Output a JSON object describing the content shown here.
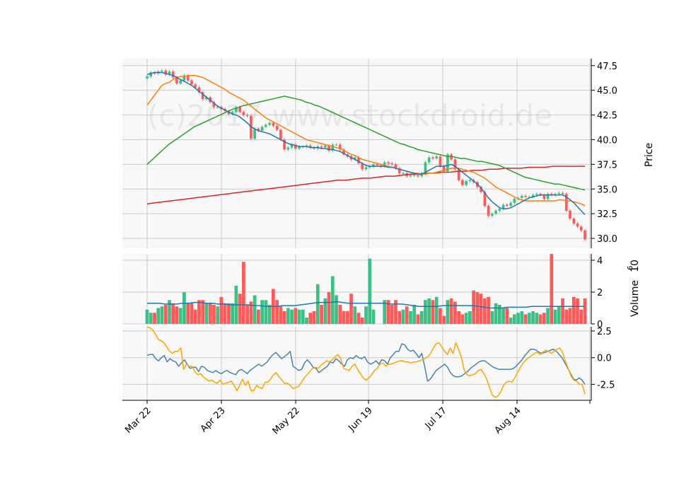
{
  "watermark": "(c)2017 www.stockdroid.de",
  "colors": {
    "up": "#3dbf85",
    "down": "#ff5a5a",
    "ma_short": "#1f77b4",
    "ma_mid": "#ff7f0e",
    "ma_long": "#2ca02c",
    "ma_200": "#d62728",
    "volume_ma": "#1f77b4",
    "osc_a": "#4682b4",
    "osc_b": "#ffa500",
    "panel_bg": "#f8f8f8",
    "grid": "#cccccc"
  },
  "x_tick_labels": [
    "Mar 22",
    "Apr 23",
    "May 22",
    "Jun 19",
    "Jul 17",
    "Aug 14"
  ],
  "chart_data": [
    {
      "type": "candlestick",
      "ylabel": "Price",
      "ylim": [
        29.0,
        48.2
      ],
      "yticks": [
        "30.0",
        "32.5",
        "35.0",
        "37.5",
        "40.0",
        "42.5",
        "45.0",
        "47.5"
      ],
      "grid": true,
      "start_date": "Mar 22",
      "close": [
        46.4,
        46.8,
        46.7,
        46.9,
        47.0,
        46.6,
        46.9,
        46.3,
        45.7,
        46.0,
        46.5,
        46.0,
        45.6,
        45.3,
        44.8,
        44.1,
        44.3,
        43.8,
        43.3,
        43.3,
        43.1,
        42.9,
        42.6,
        42.8,
        43.3,
        42.8,
        42.5,
        42.4,
        40.1,
        41.1,
        40.9,
        41.3,
        41.5,
        41.7,
        41.4,
        41.0,
        40.0,
        39.0,
        39.2,
        39.5,
        39.1,
        39.3,
        39.3,
        39.4,
        39.2,
        39.1,
        39.3,
        39.2,
        39.4,
        38.9,
        39.5,
        39.5,
        39.0,
        38.5,
        38.3,
        38.0,
        38.2,
        37.6,
        37.0,
        37.2,
        37.3,
        37.5,
        37.4,
        37.3,
        37.7,
        37.6,
        37.5,
        37.1,
        36.6,
        36.6,
        36.3,
        36.4,
        36.4,
        36.3,
        36.6,
        37.7,
        38.2,
        38.1,
        38.3,
        37.3,
        36.8,
        38.5,
        38.0,
        37.0,
        35.9,
        35.4,
        35.8,
        35.9,
        35.7,
        35.2,
        34.7,
        33.3,
        32.3,
        32.5,
        32.8,
        33.0,
        33.4,
        33.3,
        33.6,
        34.0,
        34.1,
        34.3,
        34.2,
        34.2,
        34.4,
        34.5,
        34.4,
        34.0,
        34.5,
        34.4,
        34.5,
        34.6,
        34.5,
        32.8,
        32.0,
        31.5,
        31.2,
        30.8,
        29.9
      ],
      "ma_short": [
        46.6,
        46.7,
        46.8,
        46.8,
        46.8,
        46.7,
        46.6,
        46.5,
        46.3,
        46.1,
        45.9,
        45.7,
        45.5,
        45.2,
        44.9,
        44.6,
        44.3,
        44.0,
        43.7,
        43.4,
        43.2,
        43.0,
        42.8,
        42.6,
        42.5,
        42.3,
        42.0,
        41.7,
        41.3,
        41.1,
        40.9,
        40.8,
        40.7,
        40.6,
        40.4,
        40.2,
        40.0,
        39.8,
        39.6,
        39.5,
        39.4,
        39.3,
        39.3,
        39.3,
        39.2,
        39.2,
        39.2,
        39.1,
        39.1,
        39.0,
        39.0,
        38.9,
        38.8,
        38.6,
        38.4,
        38.2,
        38.0,
        37.8,
        37.6,
        37.4,
        37.3,
        37.3,
        37.3,
        37.3,
        37.3,
        37.2,
        37.2,
        37.1,
        37.0,
        36.9,
        36.8,
        36.7,
        36.6,
        36.5,
        36.5,
        36.7,
        36.9,
        37.1,
        37.3,
        37.3,
        37.3,
        37.4,
        37.5,
        37.3,
        37.0,
        36.7,
        36.4,
        36.1,
        35.8,
        35.5,
        35.1,
        34.6,
        34.1,
        33.7,
        33.4,
        33.1,
        33.0,
        33.0,
        33.1,
        33.3,
        33.5,
        33.7,
        33.9,
        34.1,
        34.2,
        34.3,
        34.4,
        34.4,
        34.4,
        34.4,
        34.4,
        34.4,
        34.4,
        34.2,
        33.9,
        33.6,
        33.2,
        32.8,
        32.4
      ],
      "ma_mid": [
        43.5,
        44.0,
        44.5,
        45.0,
        45.5,
        45.7,
        45.8,
        46.1,
        46.3,
        46.4,
        46.4,
        46.5,
        46.5,
        46.5,
        46.4,
        46.3,
        46.1,
        45.9,
        45.7,
        45.5,
        45.3,
        45.1,
        44.8,
        44.6,
        44.4,
        44.2,
        44.0,
        43.7,
        43.4,
        43.1,
        42.8,
        42.5,
        42.2,
        42.0,
        41.8,
        41.6,
        41.4,
        41.2,
        41.0,
        40.8,
        40.6,
        40.4,
        40.2,
        40.0,
        39.9,
        39.8,
        39.7,
        39.6,
        39.5,
        39.4,
        39.3,
        39.2,
        39.1,
        38.9,
        38.7,
        38.5,
        38.4,
        38.2,
        38.0,
        37.9,
        37.8,
        37.7,
        37.6,
        37.5,
        37.4,
        37.3,
        37.2,
        37.1,
        37.0,
        36.9,
        36.8,
        36.7,
        36.6,
        36.6,
        36.5,
        36.5,
        36.6,
        36.6,
        36.7,
        36.8,
        36.9,
        37.0,
        37.1,
        37.1,
        37.1,
        37.0,
        36.9,
        36.8,
        36.7,
        36.5,
        36.3,
        36.1,
        35.8,
        35.5,
        35.2,
        35.0,
        34.8,
        34.6,
        34.4,
        34.2,
        34.0,
        33.9,
        33.8,
        33.8,
        33.8,
        33.8,
        33.8,
        33.8,
        33.8,
        33.8,
        33.8,
        33.9,
        33.9,
        33.8,
        33.8,
        33.7,
        33.6,
        33.5,
        33.3
      ],
      "ma_long": [
        37.5,
        37.9,
        38.3,
        38.7,
        39.1,
        39.5,
        39.8,
        40.1,
        40.4,
        40.7,
        41.0,
        41.3,
        41.5,
        41.7,
        41.9,
        42.1,
        42.3,
        42.5,
        42.7,
        42.9,
        43.1,
        43.2,
        43.4,
        43.5,
        43.6,
        43.7,
        43.8,
        43.9,
        44.0,
        44.1,
        44.2,
        44.3,
        44.4,
        44.3,
        44.2,
        44.1,
        44.0,
        43.8,
        43.7,
        43.5,
        43.4,
        43.2,
        43.0,
        42.8,
        42.6,
        42.4,
        42.2,
        42.0,
        41.8,
        41.6,
        41.4,
        41.2,
        41.0,
        40.8,
        40.6,
        40.4,
        40.2,
        40.0,
        39.8,
        39.6,
        39.5,
        39.3,
        39.2,
        39.0,
        38.9,
        38.8,
        38.7,
        38.6,
        38.5,
        38.4,
        38.3,
        38.3,
        38.2,
        38.1,
        38.1,
        38.0,
        37.9,
        37.8,
        37.8,
        37.7,
        37.6,
        37.5,
        37.4,
        37.2,
        37.0,
        36.8,
        36.6,
        36.4,
        36.2,
        36.1,
        36.0,
        35.9,
        35.8,
        35.7,
        35.6,
        35.5,
        35.5,
        35.4,
        35.3,
        35.2,
        35.1,
        35.0,
        34.9
      ],
      "ma_200": [
        33.5,
        33.6,
        33.7,
        33.8,
        33.9,
        34.0,
        34.1,
        34.2,
        34.3,
        34.4,
        34.5,
        34.6,
        34.7,
        34.8,
        34.9,
        35.0,
        35.1,
        35.2,
        35.3,
        35.4,
        35.5,
        35.6,
        35.7,
        35.8,
        35.9,
        35.9,
        36.0,
        36.1,
        36.1,
        36.2,
        36.3,
        36.3,
        36.4,
        36.5,
        36.5,
        36.6,
        36.6,
        36.7,
        36.7,
        36.8,
        36.8,
        36.9,
        36.9,
        37.0,
        37.0,
        37.1,
        37.1,
        37.1,
        37.2,
        37.2,
        37.2,
        37.3,
        37.3,
        37.3,
        37.3,
        37.3
      ]
    },
    {
      "type": "bar",
      "ylabel": "Volume",
      "unit_label": "10^6",
      "ylim": [
        0,
        4.4
      ],
      "yticks": [
        "0",
        "2",
        "4"
      ],
      "grid": true,
      "values": [
        0.9,
        0.7,
        0.7,
        1.0,
        1.1,
        1.2,
        1.5,
        1.3,
        1.1,
        1.0,
        2.0,
        1.3,
        1.3,
        0.9,
        1.5,
        1.5,
        1.3,
        1.3,
        1.2,
        1.1,
        1.7,
        1.3,
        1.3,
        1.3,
        2.4,
        1.9,
        3.9,
        1.2,
        1.4,
        1.8,
        0.9,
        1.5,
        1.5,
        1.2,
        2.2,
        1.5,
        1.1,
        0.8,
        1.0,
        0.9,
        1.0,
        0.9,
        0.9,
        0.4,
        0.7,
        0.8,
        2.5,
        1.2,
        1.6,
        2.0,
        3.0,
        1.8,
        1.2,
        0.8,
        0.8,
        1.9,
        1.1,
        0.7,
        0.4,
        1.1,
        4.1,
        0.9,
        0.0,
        0.0,
        1.5,
        1.5,
        1.2,
        1.5,
        0.8,
        0.9,
        1.1,
        0.8,
        1.2,
        0.6,
        0.8,
        1.5,
        1.6,
        1.5,
        1.7,
        1.0,
        0.5,
        1.5,
        1.6,
        1.4,
        0.8,
        0.6,
        0.7,
        0.8,
        2.1,
        2.0,
        1.9,
        1.6,
        1.7,
        0.8,
        1.3,
        1.2,
        1.0,
        1.0,
        0.4,
        0.6,
        0.7,
        0.8,
        0.6,
        0.7,
        0.8,
        0.7,
        0.6,
        0.7,
        1.0,
        4.4,
        0.9,
        1.1,
        1.6,
        0.9,
        1.0,
        1.7,
        1.6,
        0.9,
        1.6
      ],
      "ma": [
        1.3,
        1.3,
        1.3,
        1.25,
        1.25,
        1.25,
        1.3,
        1.3,
        1.35,
        1.35,
        1.3,
        1.3,
        1.25,
        1.25,
        1.2,
        1.2,
        1.2,
        1.2,
        1.15,
        1.15,
        1.1,
        1.1,
        1.1,
        1.15,
        1.15,
        1.15,
        1.2,
        1.25,
        1.3,
        1.35,
        1.35,
        1.35,
        1.4,
        1.35,
        1.3,
        1.3,
        1.3,
        1.3,
        1.3,
        1.3,
        1.3,
        1.25,
        1.25,
        1.25,
        1.2,
        1.15,
        1.1,
        1.1,
        1.1,
        1.1,
        1.15,
        1.15,
        1.15,
        1.15,
        1.15,
        1.15,
        1.1,
        1.05,
        1.0,
        1.0,
        1.0,
        1.05,
        1.05,
        1.05,
        1.05,
        1.1,
        1.1,
        1.1,
        1.1,
        1.1,
        1.1,
        1.1,
        1.1,
        1.1,
        1.1
      ]
    },
    {
      "type": "line",
      "ylim": [
        -4.0,
        2.9
      ],
      "yticks": [
        "-2.5",
        "0.0",
        "2.5"
      ],
      "grid": true,
      "series": [
        {
          "values": [
            0.2,
            0.3,
            0.3,
            -0.1,
            -0.3,
            0.0,
            0.2,
            -0.4,
            -0.1,
            -0.3,
            -0.4,
            -0.8,
            -0.5,
            -0.2,
            -0.6,
            -1.0,
            -0.9,
            -0.9,
            -1.3,
            -0.8,
            -0.9,
            -1.2,
            -1.3,
            -1.4,
            -1.2,
            -1.4,
            -1.5,
            -1.3,
            -1.2,
            -1.4,
            -1.5,
            -1.6,
            -1.2,
            -1.1,
            -1.3,
            -1.5,
            -1.2,
            -1.0,
            -0.8,
            -0.6,
            -0.8,
            -0.6,
            -0.4,
            0.0,
            0.3,
            0.5,
            0.2,
            -0.1,
            0.1,
            0.3,
            0.6,
            -0.8,
            -1.0,
            -1.2,
            -1.1,
            -0.5,
            -0.2,
            -0.5,
            -0.9,
            -1.0,
            -1.4,
            -1.2,
            -1.0,
            -0.8,
            -0.4,
            -0.5,
            -0.1,
            -0.3,
            -0.6,
            -0.8,
            -0.2,
            0.0,
            -0.1,
            0.2,
            0.0,
            -0.1,
            0.1,
            -0.4,
            -0.6,
            -0.5,
            -0.3,
            -0.6,
            -0.2,
            -0.3,
            -0.6,
            0.0,
            0.3,
            0.6,
            0.6,
            1.3,
            1.2,
            0.8,
            0.6,
            0.7,
            0.4,
            0.0,
            0.4,
            -0.8,
            -2.2,
            -2.0,
            -1.6,
            -1.2,
            -1.0,
            -0.8,
            -0.6,
            -0.9,
            -1.4,
            -1.7,
            -1.8,
            -1.8,
            -1.7,
            -1.5,
            -1.3,
            -1.0,
            -0.8,
            -0.6,
            -0.4,
            -0.3,
            -0.3,
            -0.5,
            -0.7,
            -0.9,
            -1.0,
            -1.1,
            -1.1,
            -1.1,
            -1.1,
            -1.1,
            -1.0,
            -0.8,
            -0.5,
            -0.2,
            0.2,
            0.5,
            0.8,
            0.8,
            0.7,
            0.5,
            0.4,
            0.5,
            0.6,
            0.7,
            0.8,
            0.6,
            0.3,
            0.0,
            -0.5,
            -1.0,
            -1.5,
            -2.0,
            -2.1,
            -1.9,
            -2.1,
            -2.5
          ]
        },
        {
          "values": [
            2.9,
            2.8,
            2.6,
            2.2,
            1.7,
            1.6,
            1.4,
            1.0,
            0.6,
            0.4,
            0.6,
            0.6,
            0.9,
            -1.1,
            -0.6,
            -0.8,
            -0.8,
            -1.3,
            -1.6,
            -1.5,
            -1.8,
            -2.0,
            -2.2,
            -2.1,
            -2.3,
            -2.4,
            -2.1,
            -2.5,
            -2.4,
            -2.3,
            -2.2,
            -2.6,
            -3.1,
            -2.6,
            -2.0,
            -2.6,
            -2.2,
            -3.1,
            -3.1,
            -2.6,
            -2.8,
            -2.9,
            -2.3,
            -2.3,
            -2.0,
            -1.6,
            -1.4,
            -1.8,
            -2.1,
            -2.4,
            -2.4,
            -2.6,
            -2.9,
            -2.8,
            -2.7,
            -2.3,
            -1.9,
            -1.6,
            -1.3,
            -1.0,
            -0.9,
            -1.0,
            -0.7,
            -0.5,
            -0.3,
            -0.4,
            -0.2,
            0.1,
            0.3,
            -0.1,
            -1.0,
            -1.1,
            -1.2,
            -0.8,
            -0.6,
            -1.1,
            -1.5,
            -1.9,
            -2.1,
            -1.9,
            -1.6,
            -1.2,
            -1.0,
            -0.6,
            -0.5,
            -0.8,
            -0.6,
            -0.6,
            -0.5,
            -0.4,
            -0.3,
            -0.3,
            -0.4,
            -0.4,
            -0.5,
            -0.4,
            -0.4,
            -0.3,
            -0.2,
            -0.1,
            0.1,
            0.4,
            0.9,
            1.3,
            1.4,
            1.0,
            0.6,
            0.3,
            0.9,
            0.4,
            1.4,
            0.8,
            0.0,
            -1.2,
            -1.6,
            -1.7,
            -1.6,
            -1.5,
            -1.2,
            -1.1,
            -1.5,
            -2.0,
            -2.8,
            -3.5,
            -3.7,
            -3.6,
            -3.2,
            -2.6,
            -2.3,
            -2.2,
            -2.3,
            -1.9,
            -1.4,
            -0.9,
            -0.5,
            -0.2,
            0.0,
            0.2,
            0.4,
            0.5,
            0.3,
            0.5,
            0.7,
            0.6,
            0.4,
            0.6,
            0.8,
            0.9,
            0.5,
            -0.3,
            -1.0,
            -1.7,
            -2.1,
            -2.2,
            -2.5,
            -2.5,
            -3.4
          ]
        }
      ]
    }
  ]
}
